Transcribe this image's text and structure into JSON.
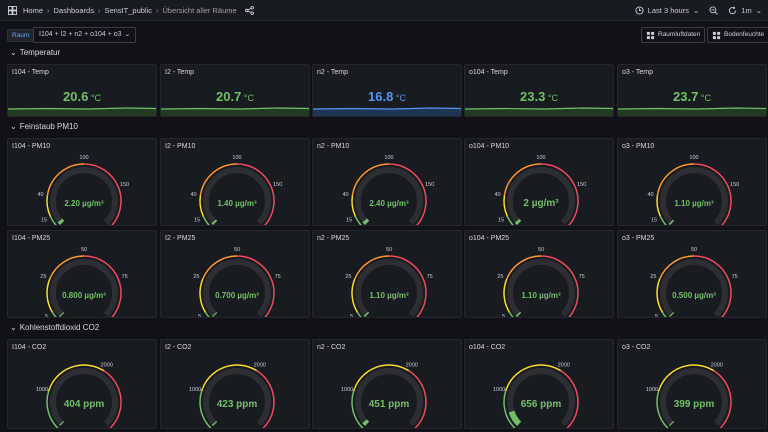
{
  "breadcrumb": [
    "Home",
    "Dashboards",
    "SensIT_public",
    "Übersicht aller Räume"
  ],
  "time_range": "Last 3 hours",
  "refresh": "1m",
  "variable": {
    "label": "Raum",
    "value": "I104 + I2 + n2 + o104 + o3"
  },
  "links": [
    "Raumluftdaten",
    "Bodenfeuchte"
  ],
  "rows": {
    "temp": {
      "title": "Temperatur"
    },
    "dust": {
      "title": "Feinstaub PM10"
    },
    "co2": {
      "title": "Kohlenstoffdioxid CO2"
    }
  },
  "colors": {
    "green": "#73bf69",
    "blue": "#5794f2",
    "yellow": "#fade2a",
    "orange": "#ff9830",
    "red": "#f2495c",
    "track": "#2c2e34"
  },
  "temp_panels": [
    {
      "title": "I104 - Temp",
      "value": "20.6",
      "unit": "°C",
      "color": "#73bf69"
    },
    {
      "title": "I2 - Temp",
      "value": "20.7",
      "unit": "°C",
      "color": "#73bf69"
    },
    {
      "title": "n2 - Temp",
      "value": "16.8",
      "unit": "°C",
      "color": "#5794f2"
    },
    {
      "title": "o104 - Temp",
      "value": "23.3",
      "unit": "°C",
      "color": "#73bf69"
    },
    {
      "title": "o3 - Temp",
      "value": "23.7",
      "unit": "°C",
      "color": "#73bf69"
    }
  ],
  "pm10_panels": [
    {
      "title": "I104 - PM10",
      "value": "2.20 µg/m³",
      "level": 0.022
    },
    {
      "title": "I2 - PM10",
      "value": "1.40 µg/m³",
      "level": 0.014
    },
    {
      "title": "n2 - PM10",
      "value": "2.40 µg/m³",
      "level": 0.024
    },
    {
      "title": "o104 - PM10",
      "value": "2 µg/m³",
      "level": 0.02
    },
    {
      "title": "o3 - PM10",
      "value": "1.10 µg/m³",
      "level": 0.011
    }
  ],
  "pm10_ticks": [
    "0",
    "15",
    "40",
    "100",
    "150",
    "200"
  ],
  "pm10_tick_values": [
    0,
    15,
    40,
    100,
    150,
    200
  ],
  "pm10_max": 200,
  "pm25_panels": [
    {
      "title": "I104 - PM25",
      "value": "0.800 µg/m³",
      "level": 0.008
    },
    {
      "title": "I2 - PM25",
      "value": "0.700 µg/m³",
      "level": 0.007
    },
    {
      "title": "n2 - PM25",
      "value": "1.10 µg/m³",
      "level": 0.011
    },
    {
      "title": "o104 - PM25",
      "value": "1.10 µg/m³",
      "level": 0.011
    },
    {
      "title": "o3 - PM25",
      "value": "0.500 µg/m³",
      "level": 0.005
    }
  ],
  "pm25_ticks": [
    "0",
    "5",
    "25",
    "50",
    "75",
    "100"
  ],
  "pm25_tick_values": [
    0,
    5,
    25,
    50,
    75,
    100
  ],
  "pm25_max": 100,
  "co2_panels": [
    {
      "title": "I104 - CO2",
      "value": "404 ppm",
      "level": 0.002
    },
    {
      "title": "I2 - CO2",
      "value": "423 ppm",
      "level": 0.01
    },
    {
      "title": "n2 - CO2",
      "value": "451 ppm",
      "level": 0.025
    },
    {
      "title": "o104 - CO2",
      "value": "656 ppm",
      "level": 0.1
    },
    {
      "title": "o3 - CO2",
      "value": "399 ppm",
      "level": 0.0
    }
  ],
  "co2_ticks": [
    "400",
    "1000",
    "2000",
    "3000"
  ],
  "co2_tick_values": [
    400,
    1000,
    2000,
    3000
  ],
  "co2_min": 400,
  "co2_max": 3000
}
